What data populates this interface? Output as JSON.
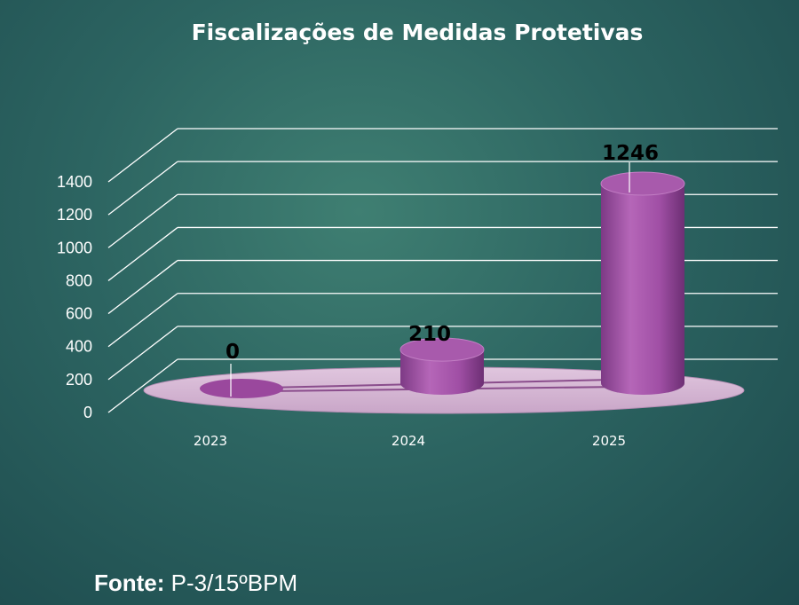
{
  "chart_data": {
    "type": "bar",
    "style": "3d-cylinder",
    "title": "Fiscalizações de Medidas Protetivas",
    "categories": [
      "2023",
      "2024",
      "2025"
    ],
    "values": [
      0,
      210,
      1246
    ],
    "data_labels": [
      "0",
      "210",
      "1246"
    ],
    "ylim": [
      0,
      1400
    ],
    "yticks": [
      "0",
      "200",
      "400",
      "600",
      "800",
      "1000",
      "1200",
      "1400"
    ],
    "xlabel": "",
    "ylabel": "",
    "grid": true,
    "legend": "none",
    "colors": {
      "bar": "#a44fa6",
      "floor": "#d8b9d7",
      "grid": "#ffffff",
      "background": "#2c6461"
    }
  },
  "footer": {
    "source_label": "Fonte:",
    "source_value": "P-3/15ºBPM"
  }
}
